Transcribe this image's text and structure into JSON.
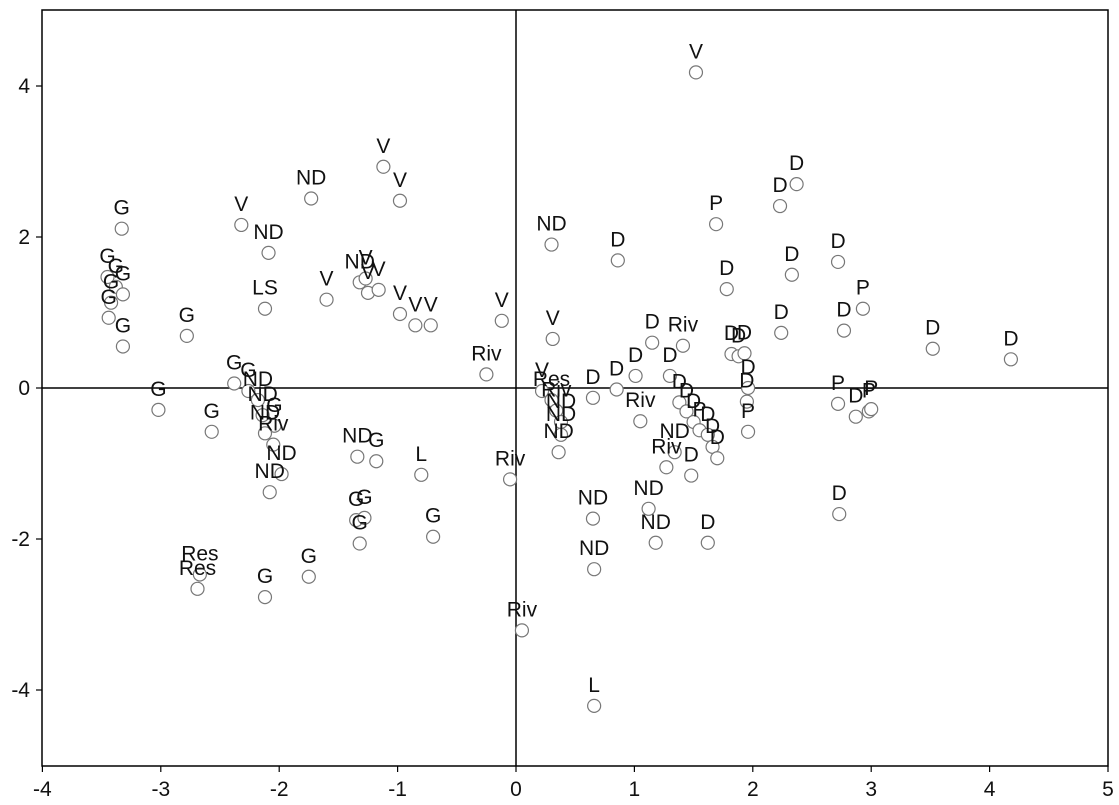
{
  "chart_data": {
    "type": "scatter",
    "title": "",
    "xlabel": "",
    "ylabel": "",
    "xlim": [
      -4,
      5
    ],
    "ylim": [
      -5,
      5
    ],
    "xticks": [
      "-4",
      "-3",
      "-2",
      "-1",
      "0",
      "1",
      "2",
      "3",
      "4",
      "5"
    ],
    "yticks": [
      "4",
      "2",
      "0",
      "-2",
      "-4"
    ],
    "grid": false,
    "reference_lines": [
      0,
      0
    ],
    "marker": "open-circle",
    "points": [
      {
        "label": "V",
        "x": 1.52,
        "y": 4.18
      },
      {
        "label": "V",
        "x": -1.12,
        "y": 2.93
      },
      {
        "label": "V",
        "x": -0.98,
        "y": 2.48
      },
      {
        "label": "ND",
        "x": -1.73,
        "y": 2.51
      },
      {
        "label": "V",
        "x": -2.32,
        "y": 2.16
      },
      {
        "label": "ND",
        "x": -2.09,
        "y": 1.79
      },
      {
        "label": "G",
        "x": -3.33,
        "y": 2.11
      },
      {
        "label": "G",
        "x": -3.45,
        "y": 1.47
      },
      {
        "label": "G",
        "x": -3.38,
        "y": 1.34
      },
      {
        "label": "G",
        "x": -3.32,
        "y": 1.24
      },
      {
        "label": "G",
        "x": -3.42,
        "y": 1.13
      },
      {
        "label": "G",
        "x": -3.44,
        "y": 0.93
      },
      {
        "label": "G",
        "x": -3.32,
        "y": 0.55
      },
      {
        "label": "G",
        "x": -2.78,
        "y": 0.69
      },
      {
        "label": "LS",
        "x": -2.12,
        "y": 1.05
      },
      {
        "label": "V",
        "x": -1.6,
        "y": 1.17
      },
      {
        "label": "ND",
        "x": -1.32,
        "y": 1.4
      },
      {
        "label": "V",
        "x": -1.25,
        "y": 1.26
      },
      {
        "label": "V",
        "x": -1.27,
        "y": 1.45
      },
      {
        "label": "V",
        "x": -1.16,
        "y": 1.3
      },
      {
        "label": "V",
        "x": -0.98,
        "y": 0.98
      },
      {
        "label": "V",
        "x": -0.85,
        "y": 0.83
      },
      {
        "label": "V",
        "x": -0.72,
        "y": 0.83
      },
      {
        "label": "V",
        "x": -0.12,
        "y": 0.89
      },
      {
        "label": "Riv",
        "x": -0.25,
        "y": 0.18
      },
      {
        "label": "G",
        "x": -2.38,
        "y": 0.06
      },
      {
        "label": "G",
        "x": -2.26,
        "y": -0.04
      },
      {
        "label": "ND",
        "x": -2.18,
        "y": -0.16
      },
      {
        "label": "ND",
        "x": -2.14,
        "y": -0.36
      },
      {
        "label": "G",
        "x": -2.04,
        "y": -0.5
      },
      {
        "label": "ND",
        "x": -2.12,
        "y": -0.6
      },
      {
        "label": "G",
        "x": -3.02,
        "y": -0.29
      },
      {
        "label": "G",
        "x": -2.57,
        "y": -0.58
      },
      {
        "label": "Riv",
        "x": -2.05,
        "y": -0.75
      },
      {
        "label": "ND",
        "x": -1.98,
        "y": -1.14
      },
      {
        "label": "ND",
        "x": -2.08,
        "y": -1.38
      },
      {
        "label": "ND",
        "x": -1.34,
        "y": -0.91
      },
      {
        "label": "G",
        "x": -1.18,
        "y": -0.97
      },
      {
        "label": "L",
        "x": -0.8,
        "y": -1.15
      },
      {
        "label": "G",
        "x": -1.35,
        "y": -1.75
      },
      {
        "label": "G",
        "x": -1.28,
        "y": -1.72
      },
      {
        "label": "G",
        "x": -1.32,
        "y": -2.06
      },
      {
        "label": "G",
        "x": -0.7,
        "y": -1.97
      },
      {
        "label": "G",
        "x": -1.75,
        "y": -2.5
      },
      {
        "label": "G",
        "x": -2.12,
        "y": -2.77
      },
      {
        "label": "Res",
        "x": -2.67,
        "y": -2.47
      },
      {
        "label": "Res",
        "x": -2.69,
        "y": -2.66
      },
      {
        "label": "Riv",
        "x": -0.05,
        "y": -1.21
      },
      {
        "label": "Riv",
        "x": 0.05,
        "y": -3.21
      },
      {
        "label": "L",
        "x": 0.66,
        "y": -4.21
      },
      {
        "label": "ND",
        "x": 0.3,
        "y": 1.9
      },
      {
        "label": "V",
        "x": 0.31,
        "y": 0.65
      },
      {
        "label": "V",
        "x": 0.22,
        "y": -0.04
      },
      {
        "label": "Res",
        "x": 0.3,
        "y": -0.16
      },
      {
        "label": "Riv",
        "x": 0.34,
        "y": -0.3
      },
      {
        "label": "ND",
        "x": 0.38,
        "y": -0.45
      },
      {
        "label": "ND",
        "x": 0.38,
        "y": -0.62
      },
      {
        "label": "ND",
        "x": 0.36,
        "y": -0.85
      },
      {
        "label": "D",
        "x": 0.65,
        "y": -0.13
      },
      {
        "label": "D",
        "x": 0.85,
        "y": -0.02
      },
      {
        "label": "D",
        "x": 1.01,
        "y": 0.16
      },
      {
        "label": "D",
        "x": 0.86,
        "y": 1.69
      },
      {
        "label": "D",
        "x": 1.15,
        "y": 0.6
      },
      {
        "label": "Riv",
        "x": 1.41,
        "y": 0.56
      },
      {
        "label": "D",
        "x": 1.3,
        "y": 0.16
      },
      {
        "label": "Riv",
        "x": 1.05,
        "y": -0.44
      },
      {
        "label": "D",
        "x": 1.38,
        "y": -0.19
      },
      {
        "label": "D",
        "x": 1.44,
        "y": -0.31
      },
      {
        "label": "D",
        "x": 1.5,
        "y": -0.45
      },
      {
        "label": "P",
        "x": 1.55,
        "y": -0.56
      },
      {
        "label": "D",
        "x": 1.62,
        "y": -0.62
      },
      {
        "label": "D",
        "x": 1.66,
        "y": -0.78
      },
      {
        "label": "ND",
        "x": 1.34,
        "y": -0.85
      },
      {
        "label": "D",
        "x": 1.48,
        "y": -1.16
      },
      {
        "label": "D",
        "x": 1.7,
        "y": -0.93
      },
      {
        "label": "Riv",
        "x": 1.27,
        "y": -1.05
      },
      {
        "label": "ND",
        "x": 1.12,
        "y": -1.6
      },
      {
        "label": "ND",
        "x": 1.18,
        "y": -2.05
      },
      {
        "label": "ND",
        "x": 0.65,
        "y": -1.73
      },
      {
        "label": "ND",
        "x": 0.66,
        "y": -2.4
      },
      {
        "label": "D",
        "x": 1.62,
        "y": -2.05
      },
      {
        "label": "P",
        "x": 1.69,
        "y": 2.17
      },
      {
        "label": "D",
        "x": 1.78,
        "y": 1.31
      },
      {
        "label": "D",
        "x": 1.82,
        "y": 0.45
      },
      {
        "label": "D",
        "x": 1.88,
        "y": 0.42
      },
      {
        "label": "D",
        "x": 1.93,
        "y": 0.46
      },
      {
        "label": "D",
        "x": 1.96,
        "y": 0.0
      },
      {
        "label": "D",
        "x": 1.95,
        "y": -0.18
      },
      {
        "label": "P",
        "x": 1.96,
        "y": -0.58
      },
      {
        "label": "D",
        "x": 2.23,
        "y": 2.41
      },
      {
        "label": "D",
        "x": 2.37,
        "y": 2.7
      },
      {
        "label": "D",
        "x": 2.33,
        "y": 1.5
      },
      {
        "label": "D",
        "x": 2.24,
        "y": 0.73
      },
      {
        "label": "D",
        "x": 2.72,
        "y": 1.67
      },
      {
        "label": "P",
        "x": 2.93,
        "y": 1.05
      },
      {
        "label": "D",
        "x": 2.77,
        "y": 0.76
      },
      {
        "label": "P",
        "x": 2.72,
        "y": -0.21
      },
      {
        "label": "D",
        "x": 2.87,
        "y": -0.38
      },
      {
        "label": "P",
        "x": 2.98,
        "y": -0.31
      },
      {
        "label": "P",
        "x": 3.0,
        "y": -0.28
      },
      {
        "label": "D",
        "x": 2.73,
        "y": -1.67
      },
      {
        "label": "D",
        "x": 3.52,
        "y": 0.52
      },
      {
        "label": "D",
        "x": 4.18,
        "y": 0.38
      }
    ]
  }
}
